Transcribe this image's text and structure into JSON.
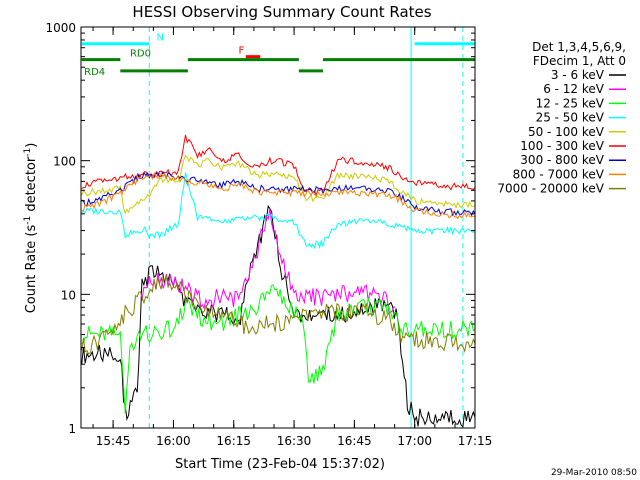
{
  "chart_data": {
    "type": "line",
    "title": "HESSI Observing Summary Count Rates",
    "xlabel": "Start Time (23-Feb-04 15:37:02)",
    "ylabel_main": "Count Rate (s",
    "ylabel_sup1": "-1",
    "ylabel_mid": " detector",
    "ylabel_sup2": "-1",
    "ylabel_end": ")",
    "yscale": "log",
    "ylim": [
      1,
      1000
    ],
    "xlim": [
      15.617,
      17.25
    ],
    "x_ticks": [
      {
        "x": 15.75,
        "label": "15:45"
      },
      {
        "x": 16.0,
        "label": "16:00"
      },
      {
        "x": 16.25,
        "label": "16:15"
      },
      {
        "x": 16.5,
        "label": "16:30"
      },
      {
        "x": 16.75,
        "label": "16:45"
      },
      {
        "x": 17.0,
        "label": "17:00"
      },
      {
        "x": 17.25,
        "label": "17:15"
      }
    ],
    "y_ticks": [
      {
        "y": 1,
        "label": "1"
      },
      {
        "y": 10,
        "label": "10"
      },
      {
        "y": 100,
        "label": "100"
      },
      {
        "y": 1000,
        "label": "1000"
      }
    ],
    "legend_header": [
      "Det 1,3,4,5,6,9,",
      "FDecim 1, Att 0"
    ],
    "timestamp": "29-Mar-2010 08:50",
    "series": [
      {
        "name": "3 - 6 keV",
        "color": "#000000",
        "points": [
          [
            15.62,
            3.5
          ],
          [
            15.7,
            3.6
          ],
          [
            15.78,
            3.5
          ],
          [
            15.8,
            1.3
          ],
          [
            15.85,
            1.8
          ],
          [
            15.87,
            12
          ],
          [
            15.92,
            15
          ],
          [
            15.97,
            13
          ],
          [
            16.0,
            13
          ],
          [
            16.05,
            9
          ],
          [
            16.1,
            8
          ],
          [
            16.15,
            7
          ],
          [
            16.2,
            7.5
          ],
          [
            16.27,
            6
          ],
          [
            16.32,
            15
          ],
          [
            16.4,
            45
          ],
          [
            16.45,
            15
          ],
          [
            16.5,
            7
          ],
          [
            16.55,
            7
          ],
          [
            16.6,
            7
          ],
          [
            16.7,
            7
          ],
          [
            16.8,
            8
          ],
          [
            16.88,
            8
          ],
          [
            16.93,
            7
          ],
          [
            16.97,
            1.5
          ],
          [
            17.0,
            1.2
          ],
          [
            17.1,
            1.2
          ],
          [
            17.25,
            1.2
          ]
        ]
      },
      {
        "name": "6 - 12 keV",
        "color": "#ff00ff",
        "points": [
          [
            15.87,
            10
          ],
          [
            15.9,
            12
          ],
          [
            15.95,
            13
          ],
          [
            16.0,
            12
          ],
          [
            16.05,
            11
          ],
          [
            16.12,
            9
          ],
          [
            16.2,
            9.5
          ],
          [
            16.27,
            9
          ],
          [
            16.32,
            15
          ],
          [
            16.4,
            42
          ],
          [
            16.45,
            18
          ],
          [
            16.5,
            10
          ],
          [
            16.55,
            9.5
          ],
          [
            16.6,
            9.5
          ],
          [
            16.7,
            10
          ],
          [
            16.8,
            10
          ],
          [
            16.88,
            9
          ],
          [
            16.92,
            8
          ]
        ]
      },
      {
        "name": "12 - 25 keV",
        "color": "#00ff00",
        "points": [
          [
            15.62,
            5
          ],
          [
            15.78,
            5
          ],
          [
            15.8,
            1.5
          ],
          [
            15.82,
            4
          ],
          [
            15.88,
            5
          ],
          [
            16.0,
            5.5
          ],
          [
            16.05,
            8
          ],
          [
            16.12,
            6.5
          ],
          [
            16.2,
            6
          ],
          [
            16.27,
            7
          ],
          [
            16.35,
            8
          ],
          [
            16.42,
            12
          ],
          [
            16.48,
            8
          ],
          [
            16.53,
            7
          ],
          [
            16.56,
            2.5
          ],
          [
            16.62,
            2.5
          ],
          [
            16.68,
            7
          ],
          [
            16.75,
            8
          ],
          [
            16.85,
            8
          ],
          [
            16.9,
            7
          ],
          [
            16.95,
            5.5
          ],
          [
            17.05,
            5.5
          ],
          [
            17.25,
            5.5
          ]
        ]
      },
      {
        "name": "25 - 50 keV",
        "color": "#00ffff",
        "points": [
          [
            15.62,
            42
          ],
          [
            15.78,
            42
          ],
          [
            15.8,
            28
          ],
          [
            15.88,
            30
          ],
          [
            15.9,
            28
          ],
          [
            15.95,
            28
          ],
          [
            16.02,
            34
          ],
          [
            16.05,
            80
          ],
          [
            16.1,
            38
          ],
          [
            16.2,
            35
          ],
          [
            16.3,
            37
          ],
          [
            16.4,
            38
          ],
          [
            16.5,
            35
          ],
          [
            16.55,
            23
          ],
          [
            16.62,
            24
          ],
          [
            16.68,
            34
          ],
          [
            16.75,
            35
          ],
          [
            16.88,
            34
          ],
          [
            16.93,
            33
          ],
          [
            17.0,
            30
          ],
          [
            17.1,
            30
          ],
          [
            17.25,
            30
          ]
        ]
      },
      {
        "name": "50 - 100 keV",
        "color": "#cccc00",
        "points": [
          [
            15.62,
            57
          ],
          [
            15.7,
            60
          ],
          [
            15.78,
            62
          ],
          [
            15.8,
            40
          ],
          [
            15.85,
            48
          ],
          [
            15.88,
            50
          ],
          [
            15.95,
            72
          ],
          [
            16.02,
            70
          ],
          [
            16.05,
            110
          ],
          [
            16.1,
            92
          ],
          [
            16.15,
            100
          ],
          [
            16.2,
            88
          ],
          [
            16.27,
            95
          ],
          [
            16.3,
            88
          ],
          [
            16.35,
            78
          ],
          [
            16.45,
            80
          ],
          [
            16.5,
            75
          ],
          [
            16.55,
            52
          ],
          [
            16.62,
            52
          ],
          [
            16.68,
            78
          ],
          [
            16.75,
            76
          ],
          [
            16.88,
            72
          ],
          [
            16.93,
            62
          ],
          [
            17.0,
            50
          ],
          [
            17.1,
            48
          ],
          [
            17.25,
            46
          ]
        ]
      },
      {
        "name": "100 - 300 keV",
        "color": "#ff0000",
        "points": [
          [
            15.62,
            65
          ],
          [
            15.7,
            70
          ],
          [
            15.78,
            75
          ],
          [
            15.88,
            78
          ],
          [
            15.95,
            80
          ],
          [
            16.02,
            82
          ],
          [
            16.05,
            150
          ],
          [
            16.1,
            110
          ],
          [
            16.15,
            120
          ],
          [
            16.2,
            100
          ],
          [
            16.27,
            110
          ],
          [
            16.3,
            95
          ],
          [
            16.35,
            88
          ],
          [
            16.4,
            100
          ],
          [
            16.45,
            98
          ],
          [
            16.5,
            90
          ],
          [
            16.55,
            58
          ],
          [
            16.62,
            58
          ],
          [
            16.68,
            100
          ],
          [
            16.75,
            100
          ],
          [
            16.88,
            90
          ],
          [
            16.93,
            80
          ],
          [
            17.0,
            68
          ],
          [
            17.1,
            65
          ],
          [
            17.25,
            63
          ]
        ]
      },
      {
        "name": "300 - 800 keV",
        "color": "#0000cc",
        "points": [
          [
            15.62,
            48
          ],
          [
            15.7,
            52
          ],
          [
            15.78,
            60
          ],
          [
            15.85,
            75
          ],
          [
            15.95,
            80
          ],
          [
            16.02,
            75
          ],
          [
            16.08,
            72
          ],
          [
            16.15,
            70
          ],
          [
            16.2,
            65
          ],
          [
            16.27,
            70
          ],
          [
            16.35,
            62
          ],
          [
            16.45,
            60
          ],
          [
            16.5,
            62
          ],
          [
            16.62,
            60
          ],
          [
            16.68,
            62
          ],
          [
            16.75,
            62
          ],
          [
            16.88,
            60
          ],
          [
            16.93,
            55
          ],
          [
            17.0,
            45
          ],
          [
            17.1,
            42
          ],
          [
            17.25,
            40
          ]
        ]
      },
      {
        "name": "800 - 7000 keV",
        "color": "#ff8000",
        "points": [
          [
            15.62,
            44
          ],
          [
            15.7,
            48
          ],
          [
            15.78,
            58
          ],
          [
            15.85,
            72
          ],
          [
            15.95,
            78
          ],
          [
            16.02,
            72
          ],
          [
            16.08,
            68
          ],
          [
            16.15,
            66
          ],
          [
            16.2,
            62
          ],
          [
            16.27,
            66
          ],
          [
            16.35,
            58
          ],
          [
            16.45,
            57
          ],
          [
            16.5,
            58
          ],
          [
            16.62,
            56
          ],
          [
            16.68,
            59
          ],
          [
            16.75,
            58
          ],
          [
            16.88,
            56
          ],
          [
            16.93,
            52
          ],
          [
            17.0,
            42
          ],
          [
            17.1,
            40
          ],
          [
            17.25,
            38
          ]
        ]
      },
      {
        "name": "7000 - 20000 keV",
        "color": "#808000",
        "points": [
          [
            15.62,
            4
          ],
          [
            15.7,
            4.5
          ],
          [
            15.75,
            5.5
          ],
          [
            15.8,
            7
          ],
          [
            15.85,
            9
          ],
          [
            15.92,
            11.5
          ],
          [
            16.0,
            12.5
          ],
          [
            16.05,
            10
          ],
          [
            16.1,
            8.5
          ],
          [
            16.18,
            7.5
          ],
          [
            16.25,
            6.5
          ],
          [
            16.32,
            5.5
          ],
          [
            16.4,
            6
          ],
          [
            16.48,
            6.2
          ],
          [
            16.55,
            7
          ],
          [
            16.62,
            7.5
          ],
          [
            16.7,
            7.5
          ],
          [
            16.8,
            7.2
          ],
          [
            16.88,
            6.8
          ],
          [
            16.95,
            4.5
          ],
          [
            17.05,
            4.5
          ],
          [
            17.25,
            4.3
          ]
        ]
      }
    ],
    "flag_bars": [
      {
        "label": "N",
        "color": "#00ffff",
        "y": 750,
        "segments": [
          [
            15.62,
            15.9
          ],
          [
            17.0,
            17.25
          ]
        ]
      },
      {
        "label": "F",
        "color": "#ff0000",
        "y": 600,
        "segments": [
          [
            16.3,
            16.36
          ]
        ]
      },
      {
        "label": "RD0",
        "color": "#008000",
        "y": 570,
        "segments": [
          [
            15.62,
            15.78
          ],
          [
            16.06,
            16.52
          ],
          [
            16.62,
            17.25
          ]
        ]
      },
      {
        "label": "RD4",
        "color": "#008000",
        "y": 470,
        "segments": [
          [
            15.78,
            16.06
          ],
          [
            16.52,
            16.62
          ]
        ]
      }
    ],
    "vlines": [
      {
        "x": 15.9,
        "color": "#00ffff",
        "style": "dashed"
      },
      {
        "x": 17.2,
        "color": "#00ffff",
        "style": "dashed"
      },
      {
        "x": 15.617,
        "color": "#00ffff",
        "style": "solid"
      },
      {
        "x": 16.985,
        "color": "#00ffff",
        "style": "solid"
      }
    ]
  }
}
